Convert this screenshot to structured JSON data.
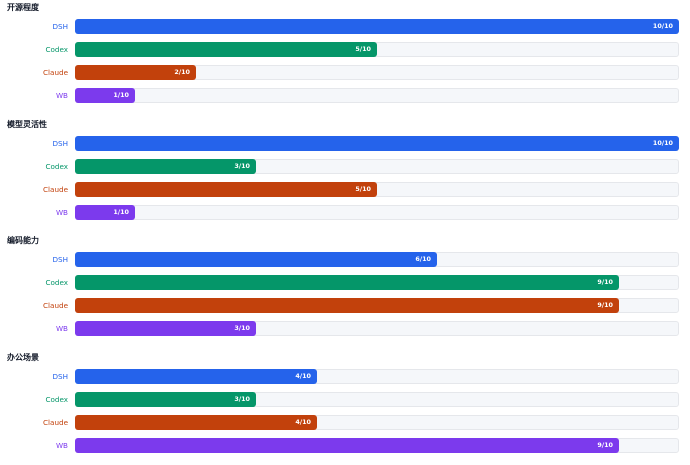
{
  "colors": {
    "DSH": "#2563eb",
    "Codex": "#059669",
    "Claude": "#c2410c",
    "WB": "#7c3aed"
  },
  "chart_data": {
    "type": "bar",
    "orientation": "horizontal",
    "max": 10,
    "groups": [
      {
        "title": "开源程度",
        "bars": [
          {
            "name": "DSH",
            "value": 10,
            "label": "10/10"
          },
          {
            "name": "Codex",
            "value": 5,
            "label": "5/10"
          },
          {
            "name": "Claude",
            "value": 2,
            "label": "2/10"
          },
          {
            "name": "WB",
            "value": 1,
            "label": "1/10"
          }
        ]
      },
      {
        "title": "模型灵活性",
        "bars": [
          {
            "name": "DSH",
            "value": 10,
            "label": "10/10"
          },
          {
            "name": "Codex",
            "value": 3,
            "label": "3/10"
          },
          {
            "name": "Claude",
            "value": 5,
            "label": "5/10"
          },
          {
            "name": "WB",
            "value": 1,
            "label": "1/10"
          }
        ]
      },
      {
        "title": "编码能力",
        "bars": [
          {
            "name": "DSH",
            "value": 6,
            "label": "6/10"
          },
          {
            "name": "Codex",
            "value": 9,
            "label": "9/10"
          },
          {
            "name": "Claude",
            "value": 9,
            "label": "9/10"
          },
          {
            "name": "WB",
            "value": 3,
            "label": "3/10"
          }
        ]
      },
      {
        "title": "办公场景",
        "bars": [
          {
            "name": "DSH",
            "value": 4,
            "label": "4/10"
          },
          {
            "name": "Codex",
            "value": 3,
            "label": "3/10"
          },
          {
            "name": "Claude",
            "value": 4,
            "label": "4/10"
          },
          {
            "name": "WB",
            "value": 9,
            "label": "9/10"
          }
        ]
      }
    ]
  }
}
